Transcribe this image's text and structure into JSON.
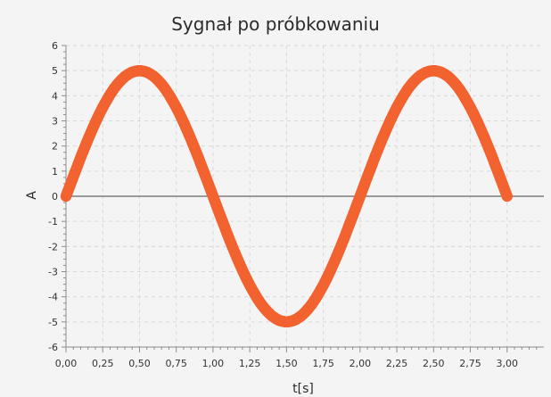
{
  "chart_data": {
    "type": "scatter",
    "title": "Sygnał po próbkowaniu",
    "xlabel": "t[s]",
    "ylabel": "A",
    "xlim": [
      0,
      3.25
    ],
    "ylim": [
      -6,
      6
    ],
    "x_ticks": [
      "0,00",
      "0,25",
      "0,50",
      "0,75",
      "1,00",
      "1,25",
      "1,50",
      "1,75",
      "2,00",
      "2,25",
      "2,50",
      "2,75",
      "3,00"
    ],
    "y_ticks": [
      "6",
      "5",
      "4",
      "3",
      "2",
      "1",
      "0",
      "-1",
      "-2",
      "-3",
      "-4",
      "-5",
      "-6"
    ],
    "grid": true,
    "legend": "none",
    "series": [
      {
        "color": "#f26330",
        "points": [
          [
            0.0,
            0.0
          ],
          [
            0.025,
            0.39
          ],
          [
            0.05,
            0.78
          ],
          [
            0.075,
            1.16
          ],
          [
            0.1,
            1.55
          ],
          [
            0.125,
            1.91
          ],
          [
            0.15,
            2.27
          ],
          [
            0.175,
            2.61
          ],
          [
            0.2,
            2.94
          ],
          [
            0.225,
            3.25
          ],
          [
            0.25,
            3.54
          ],
          [
            0.275,
            3.8
          ],
          [
            0.3,
            4.05
          ],
          [
            0.325,
            4.27
          ],
          [
            0.35,
            4.46
          ],
          [
            0.375,
            4.62
          ],
          [
            0.4,
            4.76
          ],
          [
            0.425,
            4.86
          ],
          [
            0.45,
            4.94
          ],
          [
            0.475,
            4.98
          ],
          [
            0.5,
            5.0
          ],
          [
            0.525,
            4.98
          ],
          [
            0.55,
            4.94
          ],
          [
            0.575,
            4.86
          ],
          [
            0.6,
            4.76
          ],
          [
            0.625,
            4.62
          ],
          [
            0.65,
            4.46
          ],
          [
            0.675,
            4.27
          ],
          [
            0.7,
            4.05
          ],
          [
            0.725,
            3.8
          ],
          [
            0.75,
            3.54
          ],
          [
            0.775,
            3.25
          ],
          [
            0.8,
            2.94
          ],
          [
            0.825,
            2.61
          ],
          [
            0.85,
            2.27
          ],
          [
            0.875,
            1.91
          ],
          [
            0.9,
            1.55
          ],
          [
            0.925,
            1.16
          ],
          [
            0.95,
            0.78
          ],
          [
            0.975,
            0.39
          ],
          [
            1.0,
            0.0
          ],
          [
            1.025,
            -0.39
          ],
          [
            1.05,
            -0.78
          ],
          [
            1.075,
            -1.16
          ],
          [
            1.1,
            -1.55
          ],
          [
            1.125,
            -1.91
          ],
          [
            1.15,
            -2.27
          ],
          [
            1.175,
            -2.61
          ],
          [
            1.2,
            -2.94
          ],
          [
            1.225,
            -3.25
          ],
          [
            1.25,
            -3.54
          ],
          [
            1.275,
            -3.8
          ],
          [
            1.3,
            -4.05
          ],
          [
            1.325,
            -4.27
          ],
          [
            1.35,
            -4.46
          ],
          [
            1.375,
            -4.62
          ],
          [
            1.4,
            -4.76
          ],
          [
            1.425,
            -4.86
          ],
          [
            1.45,
            -4.94
          ],
          [
            1.475,
            -4.98
          ],
          [
            1.5,
            -5.0
          ],
          [
            1.525,
            -4.98
          ],
          [
            1.55,
            -4.94
          ],
          [
            1.575,
            -4.86
          ],
          [
            1.6,
            -4.76
          ],
          [
            1.625,
            -4.62
          ],
          [
            1.65,
            -4.46
          ],
          [
            1.675,
            -4.27
          ],
          [
            1.7,
            -4.05
          ],
          [
            1.725,
            -3.8
          ],
          [
            1.75,
            -3.54
          ],
          [
            1.775,
            -3.25
          ],
          [
            1.8,
            -2.94
          ],
          [
            1.825,
            -2.61
          ],
          [
            1.85,
            -2.27
          ],
          [
            1.875,
            -1.91
          ],
          [
            1.9,
            -1.55
          ],
          [
            1.925,
            -1.16
          ],
          [
            1.95,
            -0.78
          ],
          [
            1.975,
            -0.39
          ],
          [
            2.0,
            0.0
          ],
          [
            2.025,
            0.39
          ],
          [
            2.05,
            0.78
          ],
          [
            2.075,
            1.16
          ],
          [
            2.1,
            1.55
          ],
          [
            2.125,
            1.91
          ],
          [
            2.15,
            2.27
          ],
          [
            2.175,
            2.61
          ],
          [
            2.2,
            2.94
          ],
          [
            2.225,
            3.25
          ],
          [
            2.25,
            3.54
          ],
          [
            2.275,
            3.8
          ],
          [
            2.3,
            4.05
          ],
          [
            2.325,
            4.27
          ],
          [
            2.35,
            4.46
          ],
          [
            2.375,
            4.62
          ],
          [
            2.4,
            4.76
          ],
          [
            2.425,
            4.86
          ],
          [
            2.45,
            4.94
          ],
          [
            2.475,
            4.98
          ],
          [
            2.5,
            5.0
          ],
          [
            2.525,
            4.98
          ],
          [
            2.55,
            4.94
          ],
          [
            2.575,
            4.86
          ],
          [
            2.6,
            4.76
          ],
          [
            2.625,
            4.62
          ],
          [
            2.65,
            4.46
          ],
          [
            2.675,
            4.27
          ],
          [
            2.7,
            4.05
          ],
          [
            2.725,
            3.8
          ],
          [
            2.75,
            3.54
          ],
          [
            2.775,
            3.25
          ],
          [
            2.8,
            2.94
          ],
          [
            2.825,
            2.61
          ],
          [
            2.85,
            2.27
          ],
          [
            2.875,
            1.91
          ],
          [
            2.9,
            1.55
          ],
          [
            2.925,
            1.16
          ],
          [
            2.95,
            0.78
          ],
          [
            2.975,
            0.39
          ],
          [
            3.0,
            0.0
          ]
        ]
      }
    ]
  },
  "colors": {
    "background": "#f4f4f4",
    "grid": "#d9d9d9",
    "axis": "#8c8c8c",
    "zero_line": "#666666",
    "series": "#f26330"
  }
}
